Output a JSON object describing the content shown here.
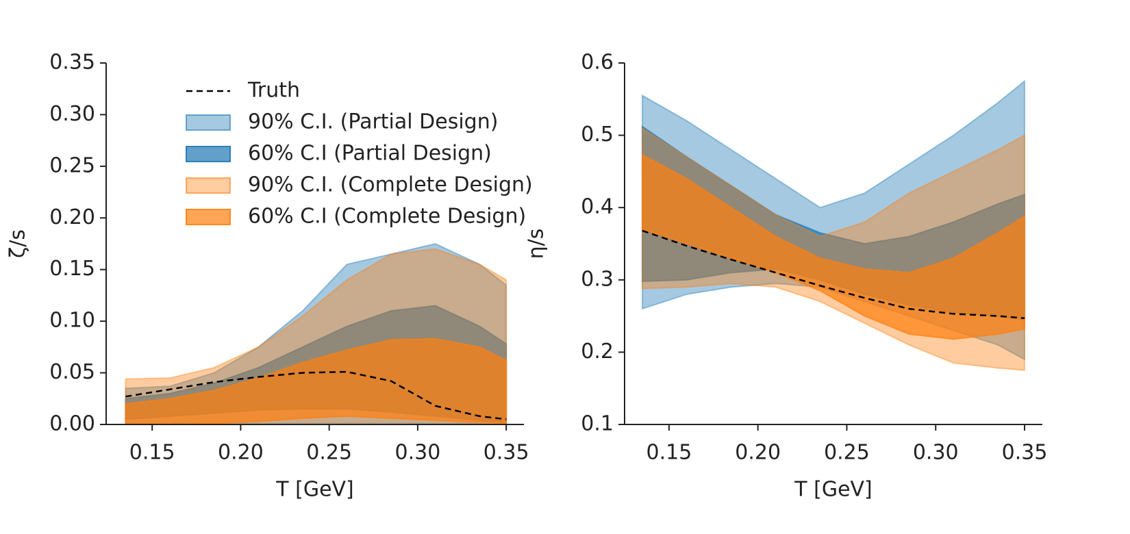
{
  "chart_data": [
    {
      "type": "band",
      "xlabel": "T [GeV]",
      "ylabel": "ζ/s",
      "x": [
        0.135,
        0.16,
        0.185,
        0.21,
        0.235,
        0.26,
        0.285,
        0.31,
        0.335,
        0.35
      ],
      "xlim": [
        0.124,
        0.36
      ],
      "ylim": [
        0,
        0.35
      ],
      "xticks": [
        0.15,
        {
          "value": 0.2,
          "label": "0.20"
        },
        0.25,
        {
          "value": 0.3,
          "label": "0.30"
        },
        0.35
      ],
      "yticks": [
        {
          "value": 0,
          "label": "0.00"
        },
        0.05,
        {
          "value": 0.1,
          "label": "0.10"
        },
        0.15,
        {
          "value": 0.2,
          "label": "0.20"
        },
        0.25,
        {
          "value": 0.3,
          "label": "0.30"
        },
        0.35
      ],
      "legend": "upper center",
      "series": [
        {
          "name": "Truth",
          "color": "#000000",
          "linestyle": "dashed",
          "values": [
            0.027,
            0.034,
            0.041,
            0.046,
            0.05,
            0.051,
            0.042,
            0.018,
            0.008,
            0.005
          ]
        },
        {
          "name": "90% C.I. (Partial Design)",
          "color": "#1f77b4",
          "opacity": 0.4,
          "upper": [
            0.035,
            0.037,
            0.05,
            0.075,
            0.11,
            0.155,
            0.165,
            0.175,
            0.155,
            0.135
          ],
          "lower": [
            0.001,
            0.001,
            0.001,
            0.001,
            0.001,
            0.001,
            0.001,
            0.001,
            0.001,
            0.001
          ]
        },
        {
          "name": "60% C.I (Partial Design)",
          "color": "#1f77b4",
          "opacity": 0.7,
          "upper": [
            0.025,
            0.03,
            0.04,
            0.055,
            0.075,
            0.095,
            0.11,
            0.115,
            0.095,
            0.078
          ],
          "lower": [
            0.005,
            0.008,
            0.011,
            0.014,
            0.015,
            0.015,
            0.012,
            0.008,
            0.004,
            0.002
          ]
        },
        {
          "name": "90% C.I. (Complete Design)",
          "color": "#ff7f0e",
          "opacity": 0.4,
          "upper": [
            0.044,
            0.045,
            0.055,
            0.075,
            0.105,
            0.14,
            0.165,
            0.17,
            0.155,
            0.14
          ],
          "lower": [
            0,
            0,
            0,
            0,
            0,
            0,
            0,
            0,
            0,
            0
          ]
        },
        {
          "name": "60% C.I (Complete Design)",
          "color": "#ff7f0e",
          "opacity": 0.7,
          "upper": [
            0.02,
            0.025,
            0.033,
            0.045,
            0.06,
            0.072,
            0.082,
            0.083,
            0.075,
            0.062
          ],
          "lower": [
            0,
            0,
            0.001,
            0.003,
            0.006,
            0.008,
            0.006,
            0.004,
            0.002,
            0.001
          ]
        }
      ]
    },
    {
      "type": "band",
      "xlabel": "T [GeV]",
      "ylabel": "η/s",
      "x": [
        0.135,
        0.16,
        0.185,
        0.21,
        0.235,
        0.26,
        0.285,
        0.31,
        0.335,
        0.35
      ],
      "xlim": [
        0.125,
        0.36
      ],
      "ylim": [
        0.1,
        0.6
      ],
      "xticks": [
        0.15,
        {
          "value": 0.2,
          "label": "0.20"
        },
        0.25,
        {
          "value": 0.3,
          "label": "0.30"
        },
        0.35
      ],
      "yticks": [
        0.1,
        0.2,
        0.3,
        0.4,
        0.5,
        0.6
      ],
      "series": [
        {
          "color": "#000000",
          "linestyle": "dashed",
          "values": [
            0.368,
            0.347,
            0.328,
            0.31,
            0.292,
            0.275,
            0.26,
            0.253,
            0.25,
            0.247
          ]
        },
        {
          "color": "#1f77b4",
          "opacity": 0.4,
          "upper": [
            0.555,
            0.52,
            0.48,
            0.44,
            0.4,
            0.42,
            0.46,
            0.5,
            0.545,
            0.575
          ],
          "lower": [
            0.26,
            0.28,
            0.29,
            0.295,
            0.29,
            0.27,
            0.25,
            0.23,
            0.21,
            0.19
          ]
        },
        {
          "color": "#1f77b4",
          "opacity": 0.7,
          "upper": [
            0.512,
            0.47,
            0.43,
            0.39,
            0.365,
            0.35,
            0.36,
            0.38,
            0.405,
            0.418
          ],
          "lower": [
            0.298,
            0.3,
            0.31,
            0.315,
            0.3,
            0.28,
            0.265,
            0.255,
            0.25,
            0.245
          ]
        },
        {
          "color": "#ff7f0e",
          "opacity": 0.4,
          "upper": [
            0.51,
            0.47,
            0.43,
            0.39,
            0.36,
            0.38,
            0.42,
            0.45,
            0.48,
            0.5
          ],
          "lower": [
            0.288,
            0.29,
            0.295,
            0.29,
            0.27,
            0.24,
            0.21,
            0.185,
            0.178,
            0.175
          ]
        },
        {
          "color": "#ff7f0e",
          "opacity": 0.7,
          "upper": [
            0.473,
            0.44,
            0.4,
            0.36,
            0.33,
            0.315,
            0.31,
            0.33,
            0.365,
            0.388
          ],
          "lower": [
            0.37,
            0.35,
            0.33,
            0.31,
            0.285,
            0.25,
            0.225,
            0.218,
            0.225,
            0.232
          ]
        }
      ]
    }
  ]
}
